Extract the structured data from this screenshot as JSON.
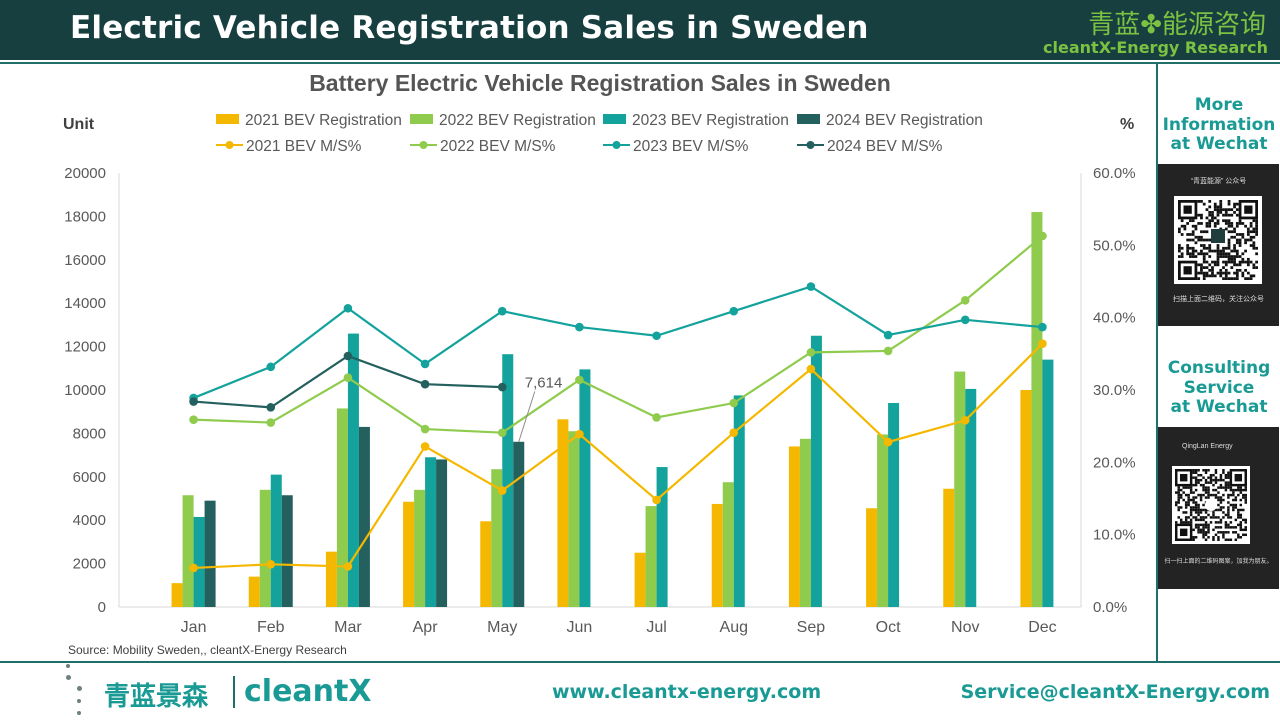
{
  "header": {
    "title": "Electric Vehicle Registration Sales in Sweden",
    "brand_cn": "青蓝✤能源咨询",
    "brand_en": "cleantX-Energy Research"
  },
  "sidebar": {
    "more_info": [
      "More",
      "Information",
      "at Wechat"
    ],
    "qr1_top": "“青蓝能源” 公众号",
    "qr1_bottom": "扫描上面二维码，关注公众号",
    "consulting": [
      "Consulting",
      "Service",
      "at Wechat"
    ],
    "qr2_top": "QingLan Energy",
    "qr2_bottom": "扫一扫上面的二维码图案，加我为朋友。"
  },
  "colors": {
    "y2021": "#f5b800",
    "y2022": "#8fcb4c",
    "y2023": "#14a29c",
    "y2024": "#24605e",
    "accent": "#1a9a94",
    "header_bg": "#173f3f"
  },
  "chart_data": {
    "type": "bar",
    "title": "Battery Electric Vehicle Registration Sales in Sweden",
    "ylabel": "Unit",
    "y2label": "%",
    "categories": [
      "Jan",
      "Feb",
      "Mar",
      "Apr",
      "May",
      "Jun",
      "Jul",
      "Aug",
      "Sep",
      "Oct",
      "Nov",
      "Dec"
    ],
    "ylim": [
      0,
      20000
    ],
    "yticks": [
      "0",
      "2000",
      "4000",
      "6000",
      "8000",
      "10000",
      "12000",
      "14000",
      "16000",
      "18000",
      "20000"
    ],
    "y2lim": [
      0,
      60
    ],
    "y2ticks": [
      "0.0%",
      "10.0%",
      "20.0%",
      "30.0%",
      "40.0%",
      "50.0%",
      "60.0%"
    ],
    "bar_series": [
      {
        "name": "2021 BEV Registration",
        "color": "#f5b800",
        "values": [
          1100,
          1400,
          2550,
          4850,
          3950,
          8650,
          2500,
          4750,
          7400,
          4550,
          5450,
          10000
        ]
      },
      {
        "name": "2022 BEV Registration",
        "color": "#8fcb4c",
        "values": [
          5150,
          5400,
          9150,
          5400,
          6350,
          8100,
          4650,
          5750,
          7750,
          7950,
          10850,
          18200
        ]
      },
      {
        "name": "2023 BEV Registration",
        "color": "#14a29c",
        "values": [
          4150,
          6100,
          12600,
          6900,
          11650,
          10950,
          6450,
          9750,
          12500,
          9400,
          10050,
          11400
        ]
      },
      {
        "name": "2024 BEV Registration",
        "color": "#24605e",
        "values": [
          4900,
          5150,
          8300,
          6800,
          7614,
          null,
          null,
          null,
          null,
          null,
          null,
          null
        ]
      }
    ],
    "line_series": [
      {
        "name": "2021 BEV M/S%",
        "color": "#f5b800",
        "values": [
          5.4,
          5.9,
          5.6,
          22.2,
          16.1,
          23.9,
          14.8,
          24.1,
          32.9,
          22.8,
          25.8,
          36.4
        ]
      },
      {
        "name": "2022 BEV M/S%",
        "color": "#8fcb4c",
        "values": [
          25.9,
          25.5,
          31.7,
          24.6,
          24.1,
          31.4,
          26.2,
          28.2,
          35.2,
          35.4,
          42.4,
          51.3
        ]
      },
      {
        "name": "2023 BEV M/S%",
        "color": "#14a29c",
        "values": [
          28.9,
          33.2,
          41.3,
          33.6,
          40.9,
          38.7,
          37.5,
          40.9,
          44.3,
          37.6,
          39.7,
          38.7
        ]
      },
      {
        "name": "2024 BEV M/S%",
        "color": "#24605e",
        "values": [
          28.4,
          27.6,
          34.7,
          30.8,
          30.4,
          null,
          null,
          null,
          null,
          null,
          null,
          null
        ]
      }
    ],
    "annotation": "7,614",
    "source": "Source: Mobility Sweden,, cleantX-Energy Research",
    "grid": false,
    "legend": "top"
  },
  "footer": {
    "logo_cn": "青蓝景森",
    "logo_en": "cleantX",
    "website": "www.cleantx-energy.com",
    "email": "Service@cleantX-Energy.com"
  }
}
